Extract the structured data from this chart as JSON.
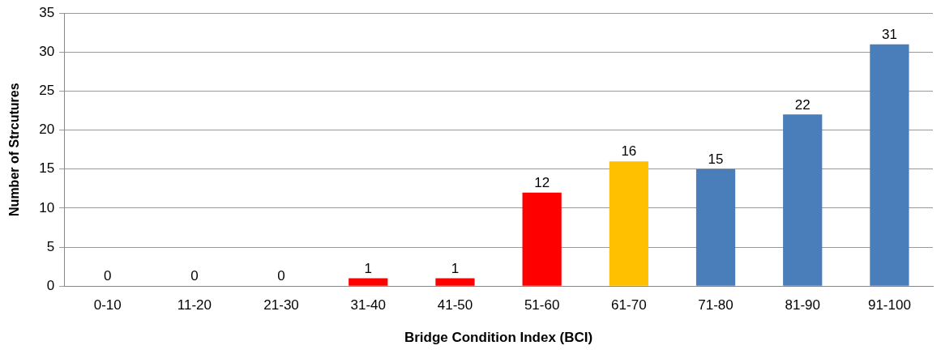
{
  "chart_data": {
    "type": "bar",
    "xlabel": "Bridge Condition Index (BCI)",
    "ylabel": "Number of Strcutures",
    "categories": [
      "0-10",
      "11-20",
      "21-30",
      "31-40",
      "41-50",
      "51-60",
      "61-70",
      "71-80",
      "81-90",
      "91-100"
    ],
    "values": [
      0,
      0,
      0,
      1,
      1,
      12,
      16,
      15,
      22,
      31
    ],
    "colors": [
      "#ff0000",
      "#ff0000",
      "#ff0000",
      "#ff0000",
      "#ff0000",
      "#ff0000",
      "#ffc000",
      "#4a7ebb",
      "#4a7ebb",
      "#4a7ebb"
    ],
    "ylim": [
      0,
      35
    ],
    "yticks": [
      0,
      5,
      10,
      15,
      20,
      25,
      30,
      35
    ],
    "grid": "y",
    "data_labels": true,
    "legend": false
  }
}
